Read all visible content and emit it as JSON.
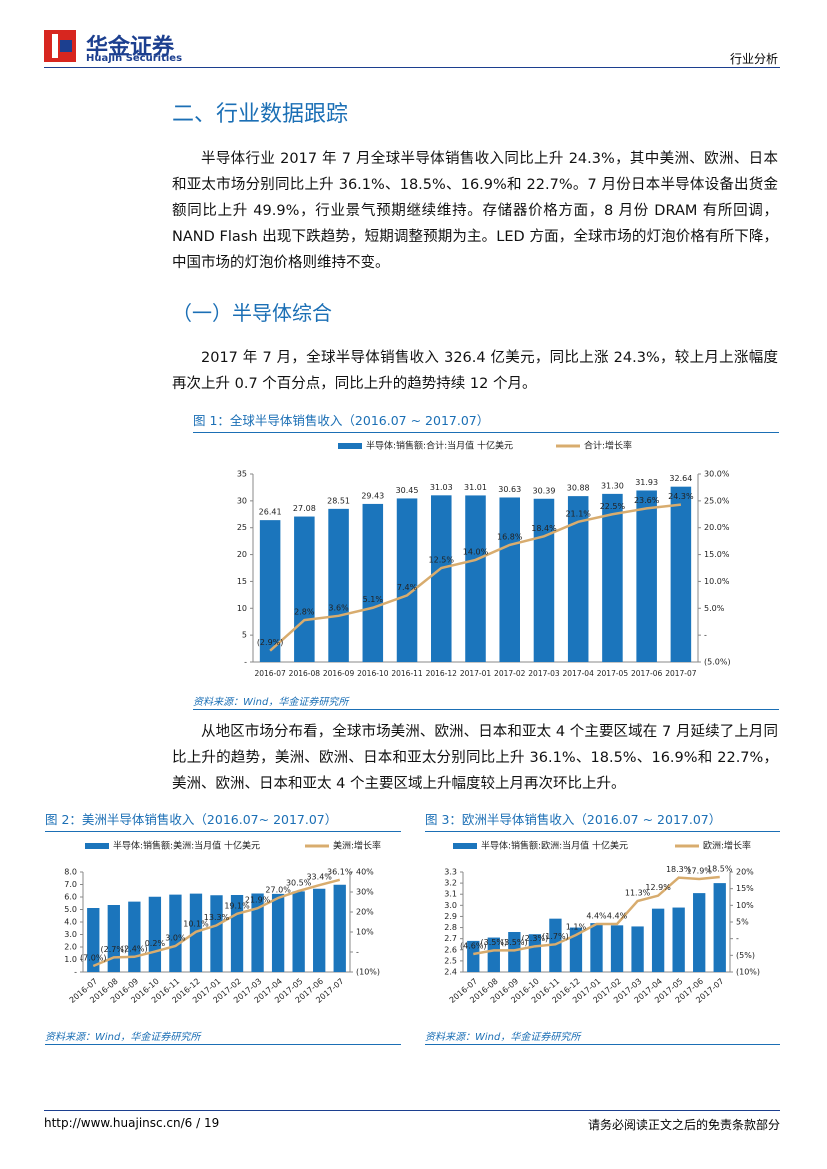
{
  "header": {
    "logo_cn": "华金证券",
    "logo_en": "Huajin Securities",
    "section": "行业分析"
  },
  "heading": "二、行业数据跟踪",
  "paragraph_1": "半导体行业 2017 年 7 月全球半导体销售收入同比上升 24.3%，其中美洲、欧洲、日本和亚太市场分别同比上升 36.1%、18.5%、16.9%和 22.7%。7 月份日本半导体设备出货金额同比上升 49.9%，行业景气预期继续维持。存储器价格方面，8 月份 DRAM 有所回调，NAND Flash 出现下跌趋势，短期调整预期为主。LED 方面，全球市场的灯泡价格有所下降，中国市场的灯泡价格则维持不变。",
  "subheading": "（一）半导体综合",
  "paragraph_2": "2017 年 7 月，全球半导体销售收入 326.4 亿美元，同比上涨 24.3%，较上月上涨幅度再次上升 0.7 个百分点，同比上升的趋势持续 12 个月。",
  "paragraph_3": "从地区市场分布看，全球市场美洲、欧洲、日本和亚太 4 个主要区域在 7 月延续了上月同比上升的趋势，美洲、欧洲、日本和亚太分别同比上升 36.1%、18.5%、16.9%和 22.7%，美洲、欧洲、日本和亚太 4 个主要区域上升幅度较上月再次环比上升。",
  "chart_data": [
    {
      "type": "bar-line",
      "title": "图 1：全球半导体销售收入（2016.07 ~ 2017.07）",
      "source": "资料来源：Wind，华金证券研究所",
      "legend": "top",
      "categories": [
        "2016-07",
        "2016-08",
        "2016-09",
        "2016-10",
        "2016-11",
        "2016-12",
        "2017-01",
        "2017-02",
        "2017-03",
        "2017-04",
        "2017-05",
        "2017-06",
        "2017-07"
      ],
      "series": [
        {
          "name": "半导体:销售额:合计:当月值 十亿美元",
          "color": "#1b75bc",
          "values": [
            26.41,
            27.08,
            28.51,
            29.43,
            30.45,
            31.03,
            31.01,
            30.63,
            30.39,
            30.88,
            31.3,
            31.93,
            32.64
          ],
          "value_labels": [
            "26.41",
            "27.08",
            "28.51",
            "29.43",
            "30.45",
            "31.03",
            "31.01",
            "30.63",
            "30.39",
            "30.88",
            "31.30",
            "31.93",
            "32.64"
          ]
        },
        {
          "name": "合计:增长率",
          "color": "#d8ac6e",
          "axis": "y2",
          "values": [
            -2.9,
            2.8,
            3.6,
            5.1,
            7.4,
            12.5,
            14.0,
            16.8,
            18.4,
            21.1,
            22.5,
            23.6,
            24.3
          ],
          "value_labels": [
            "(2.9%)",
            "2.8%",
            "3.6%",
            "5.1%",
            "7.4%",
            "12.5%",
            "14.0%",
            "16.8%",
            "18.4%",
            "21.1%",
            "22.5%",
            "23.6%",
            "24.3%"
          ]
        }
      ],
      "ylim": [
        0,
        35
      ],
      "yticks": [
        {
          "value": 0,
          "label": "-"
        },
        5,
        10,
        15,
        20,
        25,
        30,
        35
      ],
      "y2lim": [
        -5,
        30
      ],
      "y2ticks": [
        {
          "value": -5,
          "label": "(5.0%)"
        },
        {
          "value": 0,
          "label": "-"
        },
        {
          "value": 5,
          "label": "5.0%"
        },
        {
          "value": 10,
          "label": "10.0%"
        },
        {
          "value": 15,
          "label": "15.0%"
        },
        {
          "value": 20,
          "label": "20.0%"
        },
        {
          "value": 25,
          "label": "25.0%"
        },
        {
          "value": 30,
          "label": "30.0%"
        }
      ]
    },
    {
      "type": "bar-line",
      "title": "图 2：美洲半导体销售收入（2016.07~ 2017.07）",
      "source": "资料来源：Wind，华金证券研究所",
      "legend": "top",
      "categories": [
        "2016-07",
        "2016-08",
        "2016-09",
        "2016-10",
        "2016-11",
        "2016-12",
        "2017-01",
        "2017-02",
        "2017-03",
        "2017-04",
        "2017-05",
        "2017-06",
        "2017-07"
      ],
      "series": [
        {
          "name": "半导体:销售额:美洲:当月值 十亿美元",
          "color": "#1b75bc",
          "values": [
            5.12,
            5.36,
            5.63,
            6.02,
            6.19,
            6.27,
            6.14,
            6.16,
            6.28,
            6.25,
            6.45,
            6.66,
            6.98
          ]
        },
        {
          "name": "美洲:增长率",
          "color": "#d8ac6e",
          "axis": "y2",
          "values": [
            -7.0,
            -2.7,
            -2.4,
            0.2,
            3.0,
            10.1,
            13.3,
            19.1,
            21.9,
            27.0,
            30.5,
            33.4,
            36.1
          ],
          "value_labels": [
            "(7.0%)",
            "(2.7%)",
            "(2.4%)",
            "0.2%",
            "3.0%",
            "10.1%",
            "13.3%",
            "19.1%",
            "21.9%",
            "27.0%",
            "30.5%",
            "33.4%",
            "36.1%"
          ]
        }
      ],
      "ylim": [
        0,
        8
      ],
      "yticks": [
        {
          "value": 0,
          "label": "-"
        },
        {
          "value": 1,
          "label": "1.0"
        },
        {
          "value": 2,
          "label": "2.0"
        },
        {
          "value": 3,
          "label": "3.0"
        },
        {
          "value": 4,
          "label": "4.0"
        },
        {
          "value": 5,
          "label": "5.0"
        },
        {
          "value": 6,
          "label": "6.0"
        },
        {
          "value": 7,
          "label": "7.0"
        },
        {
          "value": 8,
          "label": "8.0"
        }
      ],
      "y2lim": [
        -10,
        40
      ],
      "y2ticks": [
        {
          "value": -10,
          "label": "(10%)"
        },
        {
          "value": 0,
          "label": "-"
        },
        {
          "value": 10,
          "label": "10%"
        },
        {
          "value": 20,
          "label": "20%"
        },
        {
          "value": 30,
          "label": "30%"
        },
        {
          "value": 40,
          "label": "40%"
        }
      ]
    },
    {
      "type": "bar-line",
      "title": "图 3：欧洲半导体销售收入（2016.07 ~ 2017.07）",
      "source": "资料来源：Wind，华金证券研究所",
      "legend": "top",
      "categories": [
        "2016-07",
        "2016-08",
        "2016-09",
        "2016-10",
        "2016-11",
        "2016-12",
        "2017-01",
        "2017-02",
        "2017-03",
        "2017-04",
        "2017-05",
        "2017-06",
        "2017-07"
      ],
      "series": [
        {
          "name": "半导体:销售额:欧洲:当月值 十亿美元",
          "color": "#1b75bc",
          "values": [
            2.68,
            2.71,
            2.76,
            2.74,
            2.88,
            2.8,
            2.84,
            2.82,
            2.81,
            2.97,
            2.98,
            3.11,
            3.2
          ]
        },
        {
          "name": "欧洲:增长率",
          "color": "#d8ac6e",
          "axis": "y2",
          "values": [
            -4.6,
            -3.5,
            -3.5,
            -2.3,
            -1.7,
            1.1,
            4.4,
            4.4,
            11.3,
            12.9,
            18.3,
            17.9,
            18.5
          ],
          "value_labels": [
            "(4.6%)",
            "(3.5%)",
            "(3.5%)",
            "(2.3%)",
            "(1.7%)",
            "1.1%",
            "4.4%",
            "4.4%",
            "11.3%",
            "12.9%",
            "18.3%",
            "17.9%",
            "18.5%"
          ]
        }
      ],
      "ylim": [
        2.4,
        3.3
      ],
      "yticks": [
        2.4,
        2.5,
        2.6,
        2.7,
        2.8,
        2.9,
        {
          "value": 3,
          "label": "3.0"
        },
        3.1,
        3.2,
        3.3
      ],
      "y2lim": [
        -10,
        20
      ],
      "y2ticks": [
        {
          "value": -10,
          "label": "(10%)"
        },
        {
          "value": -5,
          "label": "(5%)"
        },
        {
          "value": 0,
          "label": "-"
        },
        {
          "value": 5,
          "label": "5%"
        },
        {
          "value": 10,
          "label": "10%"
        },
        {
          "value": 15,
          "label": "15%"
        },
        {
          "value": 20,
          "label": "20%"
        }
      ]
    }
  ],
  "footer": {
    "url": "http://www.huajinsc.cn/6 / 19",
    "disclaimer": "请务必阅读正文之后的免责条款部分"
  }
}
